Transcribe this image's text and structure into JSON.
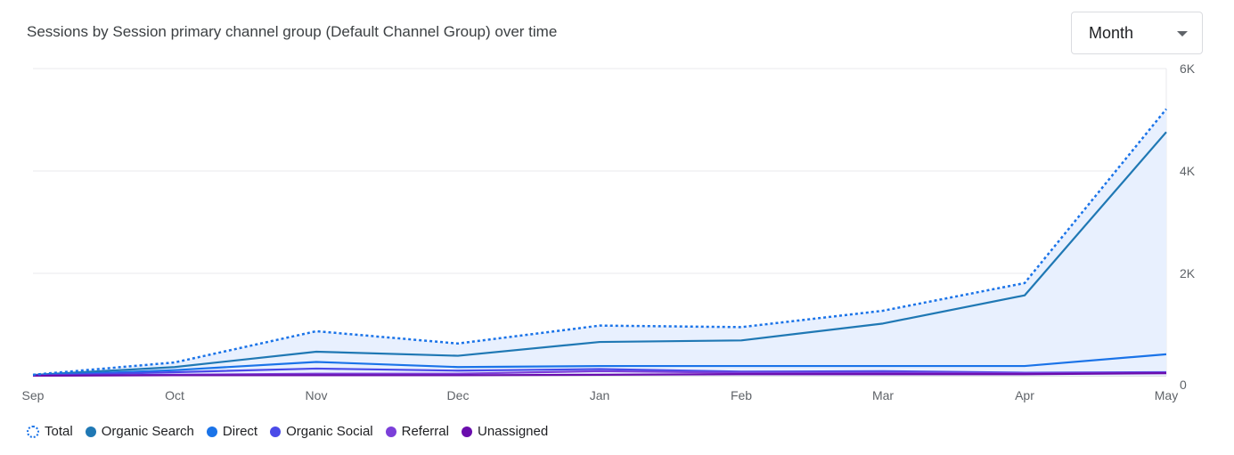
{
  "header": {
    "title": "Sessions by Session primary channel group (Default Channel Group) over time",
    "period_select": {
      "value": "Month"
    }
  },
  "chart_data": {
    "type": "line",
    "x": [
      "Sep",
      "Oct",
      "Nov",
      "Dec",
      "Jan",
      "Feb",
      "Mar",
      "Apr",
      "May"
    ],
    "y_ticks": [
      {
        "value": 0,
        "label": "0"
      },
      {
        "value": 2000,
        "label": "2K"
      },
      {
        "value": 4000,
        "label": "4K"
      },
      {
        "value": 6000,
        "label": "6K"
      }
    ],
    "ylim": [
      0,
      6000
    ],
    "grid": true,
    "legend_position": "bottom-left",
    "series": [
      {
        "name": "Total",
        "color": "#1a73e8",
        "style": "dotted",
        "fill": "#e8f0fe",
        "values": [
          20,
          260,
          870,
          630,
          980,
          950,
          1270,
          1810,
          5210
        ]
      },
      {
        "name": "Organic Search",
        "color": "#1f78b4",
        "style": "solid",
        "values": [
          15,
          170,
          470,
          390,
          660,
          690,
          1020,
          1570,
          4760
        ]
      },
      {
        "name": "Direct",
        "color": "#1a73e8",
        "style": "solid",
        "values": [
          5,
          110,
          270,
          170,
          190,
          190,
          190,
          190,
          420
        ]
      },
      {
        "name": "Organic Social",
        "color": "#4a4ae8",
        "style": "solid",
        "values": [
          3,
          70,
          140,
          100,
          130,
          80,
          90,
          60,
          70
        ]
      },
      {
        "name": "Referral",
        "color": "#7b3fd9",
        "style": "solid",
        "values": [
          2,
          20,
          40,
          40,
          90,
          60,
          60,
          50,
          60
        ]
      },
      {
        "name": "Unassigned",
        "color": "#6a0dad",
        "style": "solid",
        "values": [
          1,
          10,
          10,
          10,
          20,
          30,
          30,
          30,
          50
        ]
      }
    ]
  }
}
